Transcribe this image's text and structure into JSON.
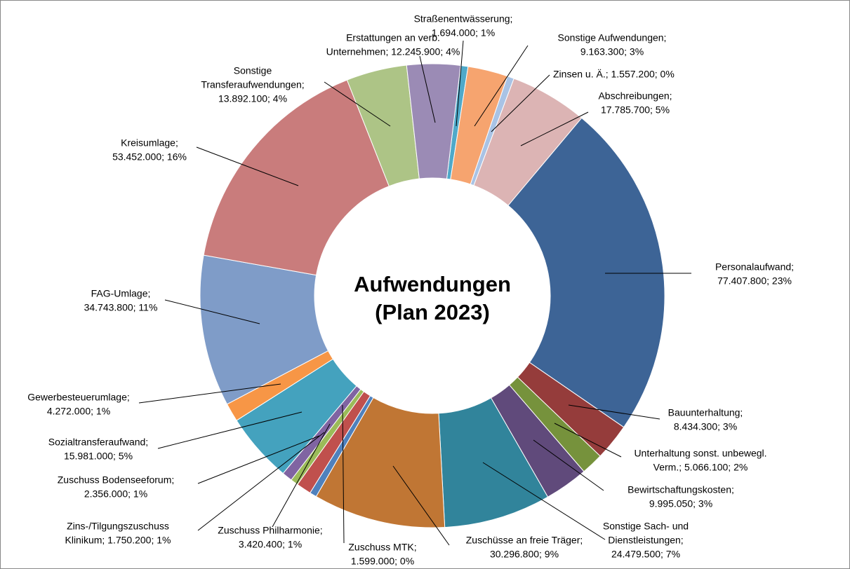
{
  "chart_data": {
    "type": "donut",
    "title": [
      "Aufwendungen",
      "(Plan 2023)"
    ],
    "categories": [
      "Straßenentwässerung",
      "Sonstige Aufwendungen",
      "Zinsen u. Ä.",
      "Abschreibungen",
      "Personalaufwand",
      "Bauunterhaltung",
      "Unterhaltung sonst. unbewegl. Verm.",
      "Bewirtschaftungskosten",
      "Sonstige Sach- und Dienstleistungen",
      "Zuschüsse an freie Träger",
      "Zuschuss MTK",
      "Zuschuss Philharmonie",
      "Zins-/Tilgungszuschuss Klinikum",
      "Zuschuss Bodenseeforum",
      "Sozialtransferaufwand",
      "Gewerbesteuerumlage",
      "FAG-Umlage",
      "Kreisumlage",
      "Sonstige Transferaufwendungen",
      "Erstattungen an verb. Unternehmen"
    ],
    "values": [
      1694000,
      9163300,
      1557200,
      17785700,
      77407800,
      8434300,
      5066100,
      9995050,
      24479500,
      30296800,
      1599000,
      3420400,
      1750200,
      2356000,
      15981000,
      4272000,
      34743800,
      53452000,
      13892100,
      12245900
    ],
    "value_labels": [
      [
        "Straßenentwässerung;",
        "1.694.000; 1%"
      ],
      [
        "Sonstige Aufwendungen;",
        "9.163.300; 3%"
      ],
      [
        "Zinsen u. Ä.;  1.557.200; 0%"
      ],
      [
        "Abschreibungen;",
        "17.785.700; 5%"
      ],
      [
        "Personalaufwand;",
        "77.407.800; 23%"
      ],
      [
        "Bauunterhaltung;",
        "8.434.300; 3%"
      ],
      [
        "Unterhaltung  sonst. unbewegl.",
        "Verm.; 5.066.100; 2%"
      ],
      [
        "Bewirtschaftungskosten;",
        "9.995.050; 3%"
      ],
      [
        "Sonstige Sach- und",
        "Dienstleistungen;",
        "24.479.500; 7%"
      ],
      [
        "Zuschüsse an freie Träger;",
        "30.296.800; 9%"
      ],
      [
        "Zuschuss MTK;",
        "1.599.000; 0%"
      ],
      [
        "Zuschuss Philharmonie;",
        "3.420.400; 1%"
      ],
      [
        "Zins-/Tilgungszuschuss",
        "Klinikum;  1.750.200; 1%"
      ],
      [
        "Zuschuss Bodenseeforum;",
        "2.356.000; 1%"
      ],
      [
        "Sozialtransferaufwand;",
        "15.981.000; 5%"
      ],
      [
        "Gewerbesteuerumlage;",
        "4.272.000; 1%"
      ],
      [
        "FAG-Umlage;",
        "34.743.800; 11%"
      ],
      [
        "Kreisumlage;",
        "53.452.000; 16%"
      ],
      [
        "Sonstige",
        "Transferaufwendungen;",
        "13.892.100; 4%"
      ],
      [
        "Erstattungen an verb.",
        "Unternehmen;  12.245.900; 4%"
      ]
    ],
    "colors": [
      "#4fa9c9",
      "#f6a46f",
      "#a9c3e5",
      "#dcb4b4",
      "#3d6496",
      "#953c3b",
      "#76923c",
      "#604a7b",
      "#31849b",
      "#c07634",
      "#4f81bd",
      "#c0504d",
      "#9bbb59",
      "#8064a2",
      "#44a2be",
      "#f79646",
      "#7f9cc8",
      "#c97c7c",
      "#adc486",
      "#9b8bb5"
    ]
  }
}
